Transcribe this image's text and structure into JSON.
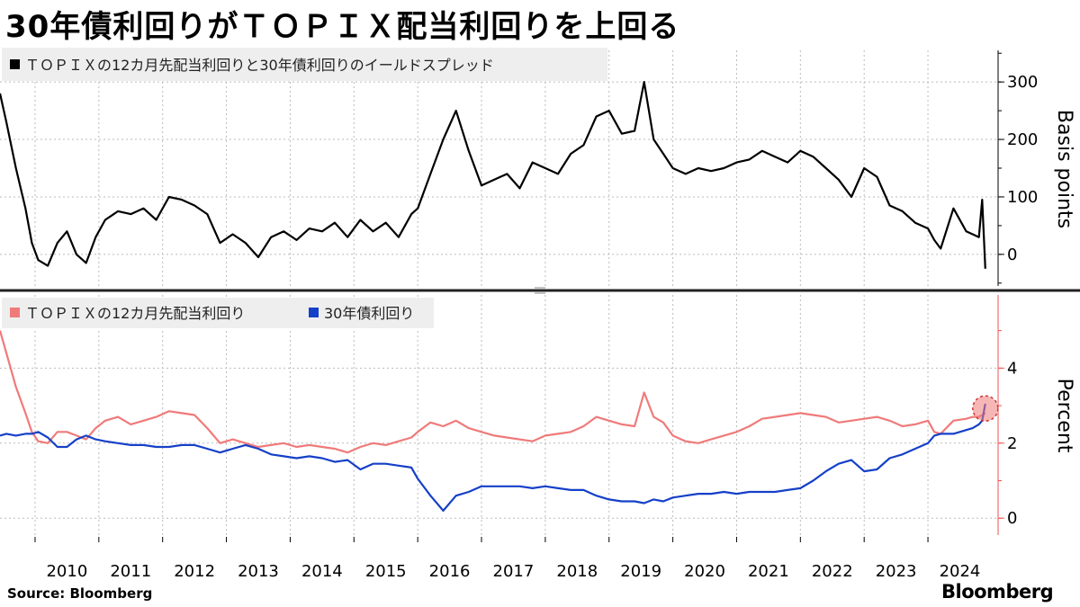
{
  "title": "30年債利回りがＴＯＰＩＸ配当利回りを上回る",
  "source": "Source:  Bloomberg",
  "brand": "Bloomberg",
  "colors": {
    "spread": "#000000",
    "topix": "#f07a7a",
    "jgb": "#1540c8",
    "highlight": "#f07a7a",
    "axis_right": "#f05050"
  },
  "chart_data": [
    {
      "type": "line",
      "legend": "ＴＯＰＩＸの12カ月先配当利回りと30年債利回りのイールドスプレッド",
      "ylabel": "Basis points",
      "ylim": [
        -55,
        355
      ],
      "yticks": [
        300,
        200,
        100,
        0
      ],
      "x": [
        2009.45,
        2009.55,
        2009.7,
        2009.85,
        2009.95,
        2010.05,
        2010.2,
        2010.35,
        2010.5,
        2010.65,
        2010.8,
        2010.95,
        2011.1,
        2011.3,
        2011.5,
        2011.7,
        2011.9,
        2012.1,
        2012.3,
        2012.5,
        2012.7,
        2012.9,
        2013.1,
        2013.3,
        2013.5,
        2013.7,
        2013.9,
        2014.1,
        2014.3,
        2014.5,
        2014.7,
        2014.9,
        2015.1,
        2015.3,
        2015.5,
        2015.7,
        2015.9,
        2016.0,
        2016.2,
        2016.4,
        2016.6,
        2016.8,
        2017.0,
        2017.2,
        2017.4,
        2017.6,
        2017.8,
        2018.0,
        2018.2,
        2018.4,
        2018.6,
        2018.8,
        2019.0,
        2019.2,
        2019.4,
        2019.55,
        2019.7,
        2019.85,
        2020.0,
        2020.2,
        2020.4,
        2020.6,
        2020.8,
        2021.0,
        2021.2,
        2021.4,
        2021.6,
        2021.8,
        2022.0,
        2022.2,
        2022.4,
        2022.6,
        2022.8,
        2023.0,
        2023.2,
        2023.4,
        2023.6,
        2023.8,
        2024.0,
        2024.1,
        2024.2,
        2024.4,
        2024.6,
        2024.7,
        2024.8,
        2024.85,
        2024.9
      ],
      "series": [
        {
          "values": [
            280,
            230,
            150,
            80,
            20,
            -10,
            -20,
            20,
            40,
            0,
            -15,
            30,
            60,
            75,
            70,
            80,
            60,
            100,
            95,
            85,
            70,
            20,
            35,
            20,
            -5,
            30,
            40,
            25,
            45,
            40,
            55,
            30,
            60,
            40,
            55,
            30,
            70,
            80,
            140,
            200,
            250,
            180,
            120,
            130,
            140,
            115,
            160,
            150,
            140,
            175,
            190,
            240,
            250,
            210,
            215,
            300,
            200,
            175,
            150,
            140,
            150,
            145,
            150,
            160,
            165,
            180,
            170,
            160,
            180,
            170,
            150,
            130,
            100,
            150,
            135,
            85,
            75,
            55,
            45,
            25,
            10,
            80,
            40,
            35,
            30,
            95,
            -25
          ]
        }
      ]
    },
    {
      "type": "line",
      "ylabel": "Percent",
      "ylim": [
        -0.45,
        5.95
      ],
      "yticks": [
        4,
        2,
        0
      ],
      "x": [
        2009.45,
        2009.55,
        2009.7,
        2009.85,
        2009.95,
        2010.05,
        2010.2,
        2010.35,
        2010.5,
        2010.65,
        2010.8,
        2010.95,
        2011.1,
        2011.3,
        2011.5,
        2011.7,
        2011.9,
        2012.1,
        2012.3,
        2012.5,
        2012.7,
        2012.9,
        2013.1,
        2013.3,
        2013.5,
        2013.7,
        2013.9,
        2014.1,
        2014.3,
        2014.5,
        2014.7,
        2014.9,
        2015.1,
        2015.3,
        2015.5,
        2015.7,
        2015.9,
        2016.0,
        2016.2,
        2016.4,
        2016.6,
        2016.8,
        2017.0,
        2017.2,
        2017.4,
        2017.6,
        2017.8,
        2018.0,
        2018.2,
        2018.4,
        2018.6,
        2018.8,
        2019.0,
        2019.2,
        2019.4,
        2019.55,
        2019.7,
        2019.85,
        2020.0,
        2020.2,
        2020.4,
        2020.6,
        2020.8,
        2021.0,
        2021.2,
        2021.4,
        2021.6,
        2021.8,
        2022.0,
        2022.2,
        2022.4,
        2022.6,
        2022.8,
        2023.0,
        2023.2,
        2023.4,
        2023.6,
        2023.8,
        2024.0,
        2024.1,
        2024.2,
        2024.4,
        2024.6,
        2024.7,
        2024.8,
        2024.85,
        2024.9
      ],
      "series": [
        {
          "name": "ＴＯＰＩＸの12カ月先配当利回り",
          "values": [
            5.0,
            4.4,
            3.5,
            2.8,
            2.3,
            2.05,
            2.0,
            2.3,
            2.3,
            2.2,
            2.1,
            2.4,
            2.6,
            2.7,
            2.5,
            2.6,
            2.7,
            2.85,
            2.8,
            2.75,
            2.4,
            2.0,
            2.1,
            2.0,
            1.9,
            1.95,
            2.0,
            1.9,
            1.95,
            1.9,
            1.85,
            1.75,
            1.9,
            2.0,
            1.95,
            2.05,
            2.15,
            2.3,
            2.55,
            2.45,
            2.6,
            2.4,
            2.3,
            2.2,
            2.15,
            2.1,
            2.05,
            2.2,
            2.25,
            2.3,
            2.45,
            2.7,
            2.6,
            2.5,
            2.45,
            3.35,
            2.7,
            2.55,
            2.2,
            2.05,
            2.0,
            2.1,
            2.2,
            2.3,
            2.45,
            2.65,
            2.7,
            2.75,
            2.8,
            2.75,
            2.7,
            2.55,
            2.6,
            2.65,
            2.7,
            2.6,
            2.45,
            2.5,
            2.6,
            2.3,
            2.25,
            2.6,
            2.65,
            2.7,
            2.7,
            2.75,
            2.8
          ]
        },
        {
          "name": "30年債利回り",
          "values": [
            2.2,
            2.25,
            2.2,
            2.25,
            2.25,
            2.3,
            2.15,
            1.9,
            1.9,
            2.1,
            2.2,
            2.1,
            2.05,
            2.0,
            1.95,
            1.95,
            1.9,
            1.9,
            1.95,
            1.95,
            1.85,
            1.75,
            1.85,
            1.95,
            1.85,
            1.7,
            1.65,
            1.6,
            1.65,
            1.6,
            1.5,
            1.55,
            1.3,
            1.45,
            1.45,
            1.4,
            1.35,
            1.05,
            0.6,
            0.2,
            0.6,
            0.7,
            0.85,
            0.85,
            0.85,
            0.85,
            0.8,
            0.85,
            0.8,
            0.75,
            0.75,
            0.6,
            0.5,
            0.45,
            0.45,
            0.4,
            0.5,
            0.45,
            0.55,
            0.6,
            0.65,
            0.65,
            0.7,
            0.65,
            0.7,
            0.7,
            0.7,
            0.75,
            0.8,
            1.0,
            1.25,
            1.45,
            1.55,
            1.25,
            1.3,
            1.6,
            1.7,
            1.85,
            2.0,
            2.2,
            2.25,
            2.25,
            2.35,
            2.4,
            2.5,
            2.6,
            3.05
          ]
        }
      ]
    }
  ],
  "x_tick_labels": [
    "2010",
    "2011",
    "2012",
    "2013",
    "2014",
    "2015",
    "2016",
    "2017",
    "2018",
    "2019",
    "2020",
    "2021",
    "2022",
    "2023",
    "2024"
  ],
  "x_range": [
    2009.45,
    2025.1
  ]
}
